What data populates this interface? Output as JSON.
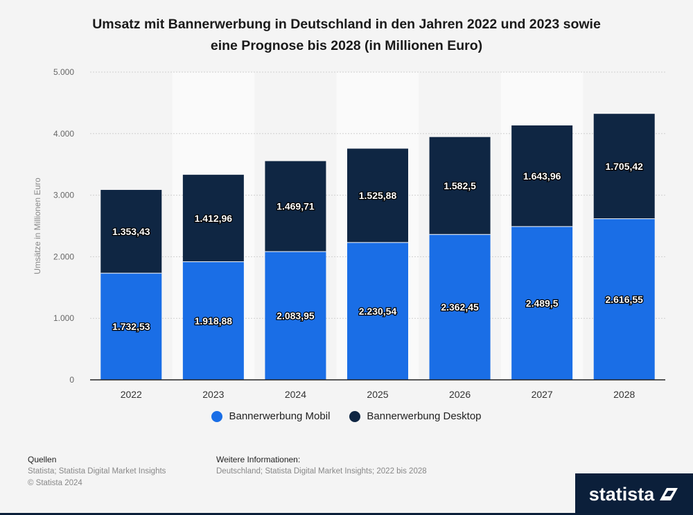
{
  "chart_data": {
    "type": "bar",
    "stacked": true,
    "title_line1": "Umsatz mit Bannerwerbung in Deutschland in den Jahren 2022 und 2023 sowie",
    "title_line2": "eine Prognose bis 2028 (in Millionen Euro)",
    "ylabel": "Umsätze in Millionen Euro",
    "xlabel": "",
    "ylim": [
      0,
      5000
    ],
    "yticks": [
      0,
      1000,
      2000,
      3000,
      4000,
      5000
    ],
    "ytick_labels": [
      "0",
      "1.000",
      "2.000",
      "3.000",
      "4.000",
      "5.000"
    ],
    "categories": [
      "2022",
      "2023",
      "2024",
      "2025",
      "2026",
      "2027",
      "2028"
    ],
    "series": [
      {
        "name": "Bannerwerbung Mobil",
        "color": "#1a6ee6",
        "values": [
          1732.53,
          1918.88,
          2083.95,
          2230.54,
          2362.45,
          2489.5,
          2616.55
        ],
        "labels": [
          "1.732,53",
          "1.918,88",
          "2.083,95",
          "2.230,54",
          "2.362,45",
          "2.489,5",
          "2.616,55"
        ]
      },
      {
        "name": "Bannerwerbung Desktop",
        "color": "#0f2643",
        "values": [
          1353.43,
          1412.96,
          1469.71,
          1525.88,
          1582.5,
          1643.96,
          1705.42
        ],
        "labels": [
          "1.353,43",
          "1.412,96",
          "1.469,71",
          "1.525,88",
          "1.582,5",
          "1.643,96",
          "1.705,42"
        ]
      }
    ],
    "grid": true,
    "legend_position": "bottom"
  },
  "footer": {
    "sources_heading": "Quellen",
    "sources_line1": "Statista; Statista Digital Market Insights",
    "sources_line2": "© Statista 2024",
    "info_heading": "Weitere Informationen:",
    "info_line1": "Deutschland; Statista Digital Market Insights; 2022 bis 2028"
  },
  "brand": {
    "name": "statista"
  }
}
